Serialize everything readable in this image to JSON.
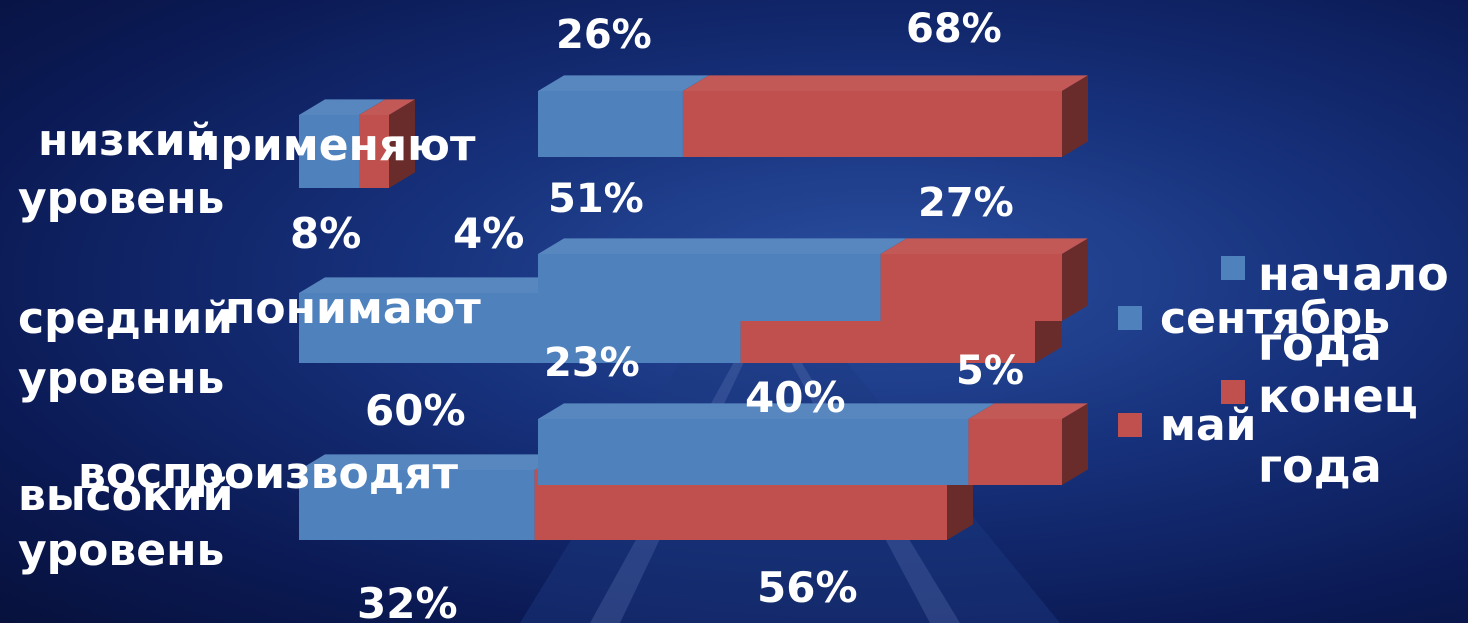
{
  "chart_data": [
    {
      "type": "bar",
      "orientation": "horizontal",
      "stacked": "percent",
      "view": "3d",
      "categories": [
        "низкий уровень",
        "средний уровень",
        "высокий уровень"
      ],
      "series": [
        {
          "name": "сентябрь",
          "values": [
            8,
            60,
            32
          ],
          "color": "#4f81bd"
        },
        {
          "name": "май",
          "values": [
            4,
            40,
            56
          ],
          "color": "#c0504d"
        }
      ],
      "value_labels": [
        [
          "8%",
          "4%"
        ],
        [
          "60%",
          "40%"
        ],
        [
          "32%",
          "56%"
        ]
      ],
      "legend_position": "right"
    },
    {
      "type": "bar",
      "orientation": "horizontal",
      "stacked": "percent",
      "view": "3d",
      "categories": [
        "применяют",
        "понимают",
        "воспроизводят"
      ],
      "series": [
        {
          "name": "начало года",
          "values": [
            26,
            51,
            23
          ],
          "color": "#4f81bd"
        },
        {
          "name": "конец года",
          "values": [
            68,
            27,
            5
          ],
          "color": "#c0504d"
        }
      ],
      "value_labels": [
        [
          "26%",
          "68%"
        ],
        [
          "51%",
          "27%"
        ],
        [
          "23%",
          "5%"
        ]
      ],
      "legend_position": "right"
    }
  ]
}
